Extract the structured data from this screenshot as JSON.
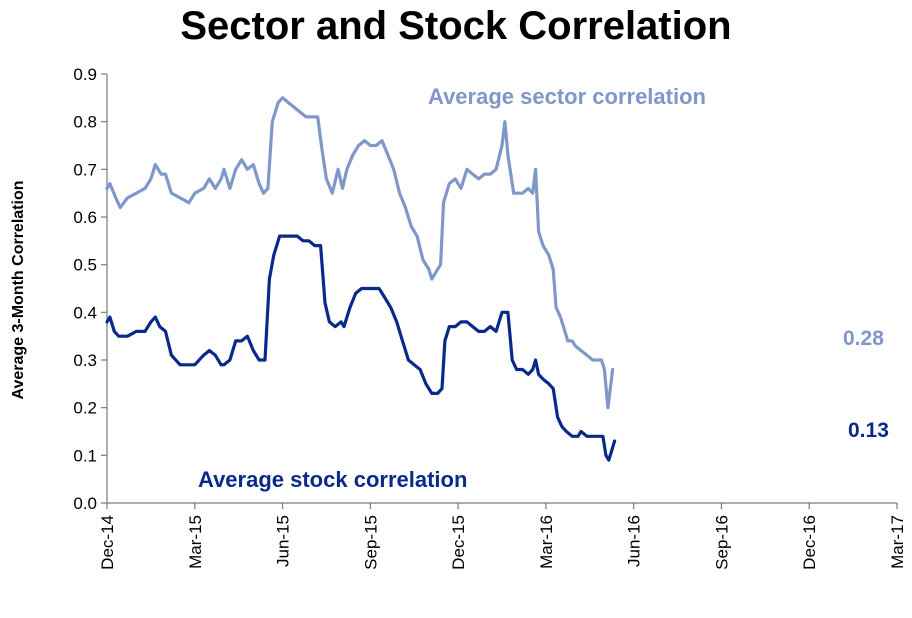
{
  "chart_data": {
    "type": "line",
    "title": "Sector and Stock Correlation",
    "ylabel": "Average 3-Month Correlation",
    "xlabel": "",
    "ylim": [
      0,
      0.9
    ],
    "y_ticks": [
      "0.0",
      "0.1",
      "0.2",
      "0.3",
      "0.4",
      "0.5",
      "0.6",
      "0.7",
      "0.8",
      "0.9"
    ],
    "x_ticks": [
      "Dec-14",
      "Mar-15",
      "Jun-15",
      "Sep-15",
      "Dec-15",
      "Mar-16",
      "Jun-16",
      "Sep-16",
      "Dec-16",
      "Mar-17"
    ],
    "grid": false,
    "series": [
      {
        "name": "Average sector correlation",
        "color": "#7f97c9",
        "end_label": "0.28",
        "points": [
          [
            0.0,
            0.66
          ],
          [
            0.1,
            0.67
          ],
          [
            0.3,
            0.64
          ],
          [
            0.45,
            0.62
          ],
          [
            0.7,
            0.64
          ],
          [
            1.0,
            0.65
          ],
          [
            1.3,
            0.66
          ],
          [
            1.5,
            0.68
          ],
          [
            1.65,
            0.71
          ],
          [
            1.85,
            0.69
          ],
          [
            2.0,
            0.69
          ],
          [
            2.2,
            0.65
          ],
          [
            2.5,
            0.64
          ],
          [
            2.8,
            0.63
          ],
          [
            3.0,
            0.65
          ],
          [
            3.3,
            0.66
          ],
          [
            3.5,
            0.68
          ],
          [
            3.7,
            0.66
          ],
          [
            3.9,
            0.68
          ],
          [
            4.0,
            0.7
          ],
          [
            4.2,
            0.66
          ],
          [
            4.4,
            0.7
          ],
          [
            4.6,
            0.72
          ],
          [
            4.8,
            0.7
          ],
          [
            5.0,
            0.71
          ],
          [
            5.2,
            0.67
          ],
          [
            5.35,
            0.65
          ],
          [
            5.5,
            0.66
          ],
          [
            5.65,
            0.8
          ],
          [
            5.85,
            0.84
          ],
          [
            6.0,
            0.85
          ],
          [
            6.2,
            0.84
          ],
          [
            6.4,
            0.83
          ],
          [
            6.6,
            0.82
          ],
          [
            6.8,
            0.81
          ],
          [
            7.0,
            0.81
          ],
          [
            7.2,
            0.81
          ],
          [
            7.35,
            0.74
          ],
          [
            7.5,
            0.68
          ],
          [
            7.7,
            0.65
          ],
          [
            7.9,
            0.7
          ],
          [
            8.05,
            0.66
          ],
          [
            8.2,
            0.7
          ],
          [
            8.4,
            0.73
          ],
          [
            8.6,
            0.75
          ],
          [
            8.8,
            0.76
          ],
          [
            9.0,
            0.75
          ],
          [
            9.2,
            0.75
          ],
          [
            9.4,
            0.76
          ],
          [
            9.6,
            0.73
          ],
          [
            9.8,
            0.7
          ],
          [
            10.0,
            0.65
          ],
          [
            10.2,
            0.62
          ],
          [
            10.4,
            0.58
          ],
          [
            10.6,
            0.56
          ],
          [
            10.8,
            0.51
          ],
          [
            11.0,
            0.49
          ],
          [
            11.1,
            0.47
          ],
          [
            11.3,
            0.49
          ],
          [
            11.4,
            0.5
          ],
          [
            11.5,
            0.63
          ],
          [
            11.7,
            0.67
          ],
          [
            11.9,
            0.68
          ],
          [
            12.1,
            0.66
          ],
          [
            12.3,
            0.7
          ],
          [
            12.5,
            0.69
          ],
          [
            12.7,
            0.68
          ],
          [
            12.9,
            0.69
          ],
          [
            13.1,
            0.69
          ],
          [
            13.3,
            0.7
          ],
          [
            13.5,
            0.75
          ],
          [
            13.6,
            0.8
          ],
          [
            13.7,
            0.73
          ],
          [
            13.9,
            0.65
          ],
          [
            14.2,
            0.65
          ],
          [
            14.4,
            0.66
          ],
          [
            14.55,
            0.65
          ],
          [
            14.65,
            0.7
          ],
          [
            14.75,
            0.57
          ],
          [
            14.9,
            0.54
          ],
          [
            15.1,
            0.52
          ],
          [
            15.25,
            0.49
          ],
          [
            15.35,
            0.41
          ],
          [
            15.5,
            0.39
          ],
          [
            15.6,
            0.37
          ],
          [
            15.75,
            0.34
          ],
          [
            15.9,
            0.34
          ],
          [
            16.0,
            0.33
          ],
          [
            16.2,
            0.32
          ],
          [
            16.4,
            0.31
          ],
          [
            16.6,
            0.3
          ],
          [
            16.8,
            0.3
          ],
          [
            16.9,
            0.3
          ],
          [
            17.0,
            0.28
          ],
          [
            17.12,
            0.2
          ],
          [
            17.2,
            0.24
          ],
          [
            17.28,
            0.28
          ]
        ]
      },
      {
        "name": "Average stock correlation",
        "color": "#0a2a8a",
        "end_label": "0.13",
        "points": [
          [
            0.0,
            0.38
          ],
          [
            0.1,
            0.39
          ],
          [
            0.25,
            0.36
          ],
          [
            0.4,
            0.35
          ],
          [
            0.7,
            0.35
          ],
          [
            1.0,
            0.36
          ],
          [
            1.3,
            0.36
          ],
          [
            1.5,
            0.38
          ],
          [
            1.65,
            0.39
          ],
          [
            1.8,
            0.37
          ],
          [
            2.0,
            0.36
          ],
          [
            2.2,
            0.31
          ],
          [
            2.5,
            0.29
          ],
          [
            2.8,
            0.29
          ],
          [
            3.0,
            0.29
          ],
          [
            3.3,
            0.31
          ],
          [
            3.5,
            0.32
          ],
          [
            3.7,
            0.31
          ],
          [
            3.9,
            0.29
          ],
          [
            4.0,
            0.29
          ],
          [
            4.2,
            0.3
          ],
          [
            4.4,
            0.34
          ],
          [
            4.6,
            0.34
          ],
          [
            4.8,
            0.35
          ],
          [
            5.0,
            0.32
          ],
          [
            5.2,
            0.3
          ],
          [
            5.4,
            0.3
          ],
          [
            5.55,
            0.47
          ],
          [
            5.7,
            0.52
          ],
          [
            5.9,
            0.56
          ],
          [
            6.1,
            0.56
          ],
          [
            6.3,
            0.56
          ],
          [
            6.5,
            0.56
          ],
          [
            6.7,
            0.55
          ],
          [
            6.9,
            0.55
          ],
          [
            7.1,
            0.54
          ],
          [
            7.3,
            0.54
          ],
          [
            7.45,
            0.42
          ],
          [
            7.6,
            0.38
          ],
          [
            7.8,
            0.37
          ],
          [
            8.0,
            0.38
          ],
          [
            8.1,
            0.37
          ],
          [
            8.3,
            0.41
          ],
          [
            8.5,
            0.44
          ],
          [
            8.7,
            0.45
          ],
          [
            8.9,
            0.45
          ],
          [
            9.1,
            0.45
          ],
          [
            9.3,
            0.45
          ],
          [
            9.5,
            0.43
          ],
          [
            9.7,
            0.41
          ],
          [
            9.9,
            0.38
          ],
          [
            10.1,
            0.34
          ],
          [
            10.3,
            0.3
          ],
          [
            10.5,
            0.29
          ],
          [
            10.7,
            0.28
          ],
          [
            10.9,
            0.25
          ],
          [
            11.1,
            0.23
          ],
          [
            11.3,
            0.23
          ],
          [
            11.45,
            0.24
          ],
          [
            11.55,
            0.34
          ],
          [
            11.7,
            0.37
          ],
          [
            11.9,
            0.37
          ],
          [
            12.1,
            0.38
          ],
          [
            12.3,
            0.38
          ],
          [
            12.5,
            0.37
          ],
          [
            12.7,
            0.36
          ],
          [
            12.9,
            0.36
          ],
          [
            13.1,
            0.37
          ],
          [
            13.3,
            0.36
          ],
          [
            13.5,
            0.4
          ],
          [
            13.7,
            0.4
          ],
          [
            13.85,
            0.3
          ],
          [
            14.0,
            0.28
          ],
          [
            14.2,
            0.28
          ],
          [
            14.4,
            0.27
          ],
          [
            14.55,
            0.28
          ],
          [
            14.65,
            0.3
          ],
          [
            14.75,
            0.27
          ],
          [
            14.9,
            0.26
          ],
          [
            15.1,
            0.25
          ],
          [
            15.25,
            0.24
          ],
          [
            15.4,
            0.18
          ],
          [
            15.55,
            0.16
          ],
          [
            15.7,
            0.15
          ],
          [
            15.9,
            0.14
          ],
          [
            16.1,
            0.14
          ],
          [
            16.2,
            0.15
          ],
          [
            16.4,
            0.14
          ],
          [
            16.6,
            0.14
          ],
          [
            16.8,
            0.14
          ],
          [
            16.95,
            0.14
          ],
          [
            17.05,
            0.1
          ],
          [
            17.15,
            0.09
          ],
          [
            17.25,
            0.11
          ],
          [
            17.35,
            0.13
          ]
        ]
      }
    ]
  }
}
